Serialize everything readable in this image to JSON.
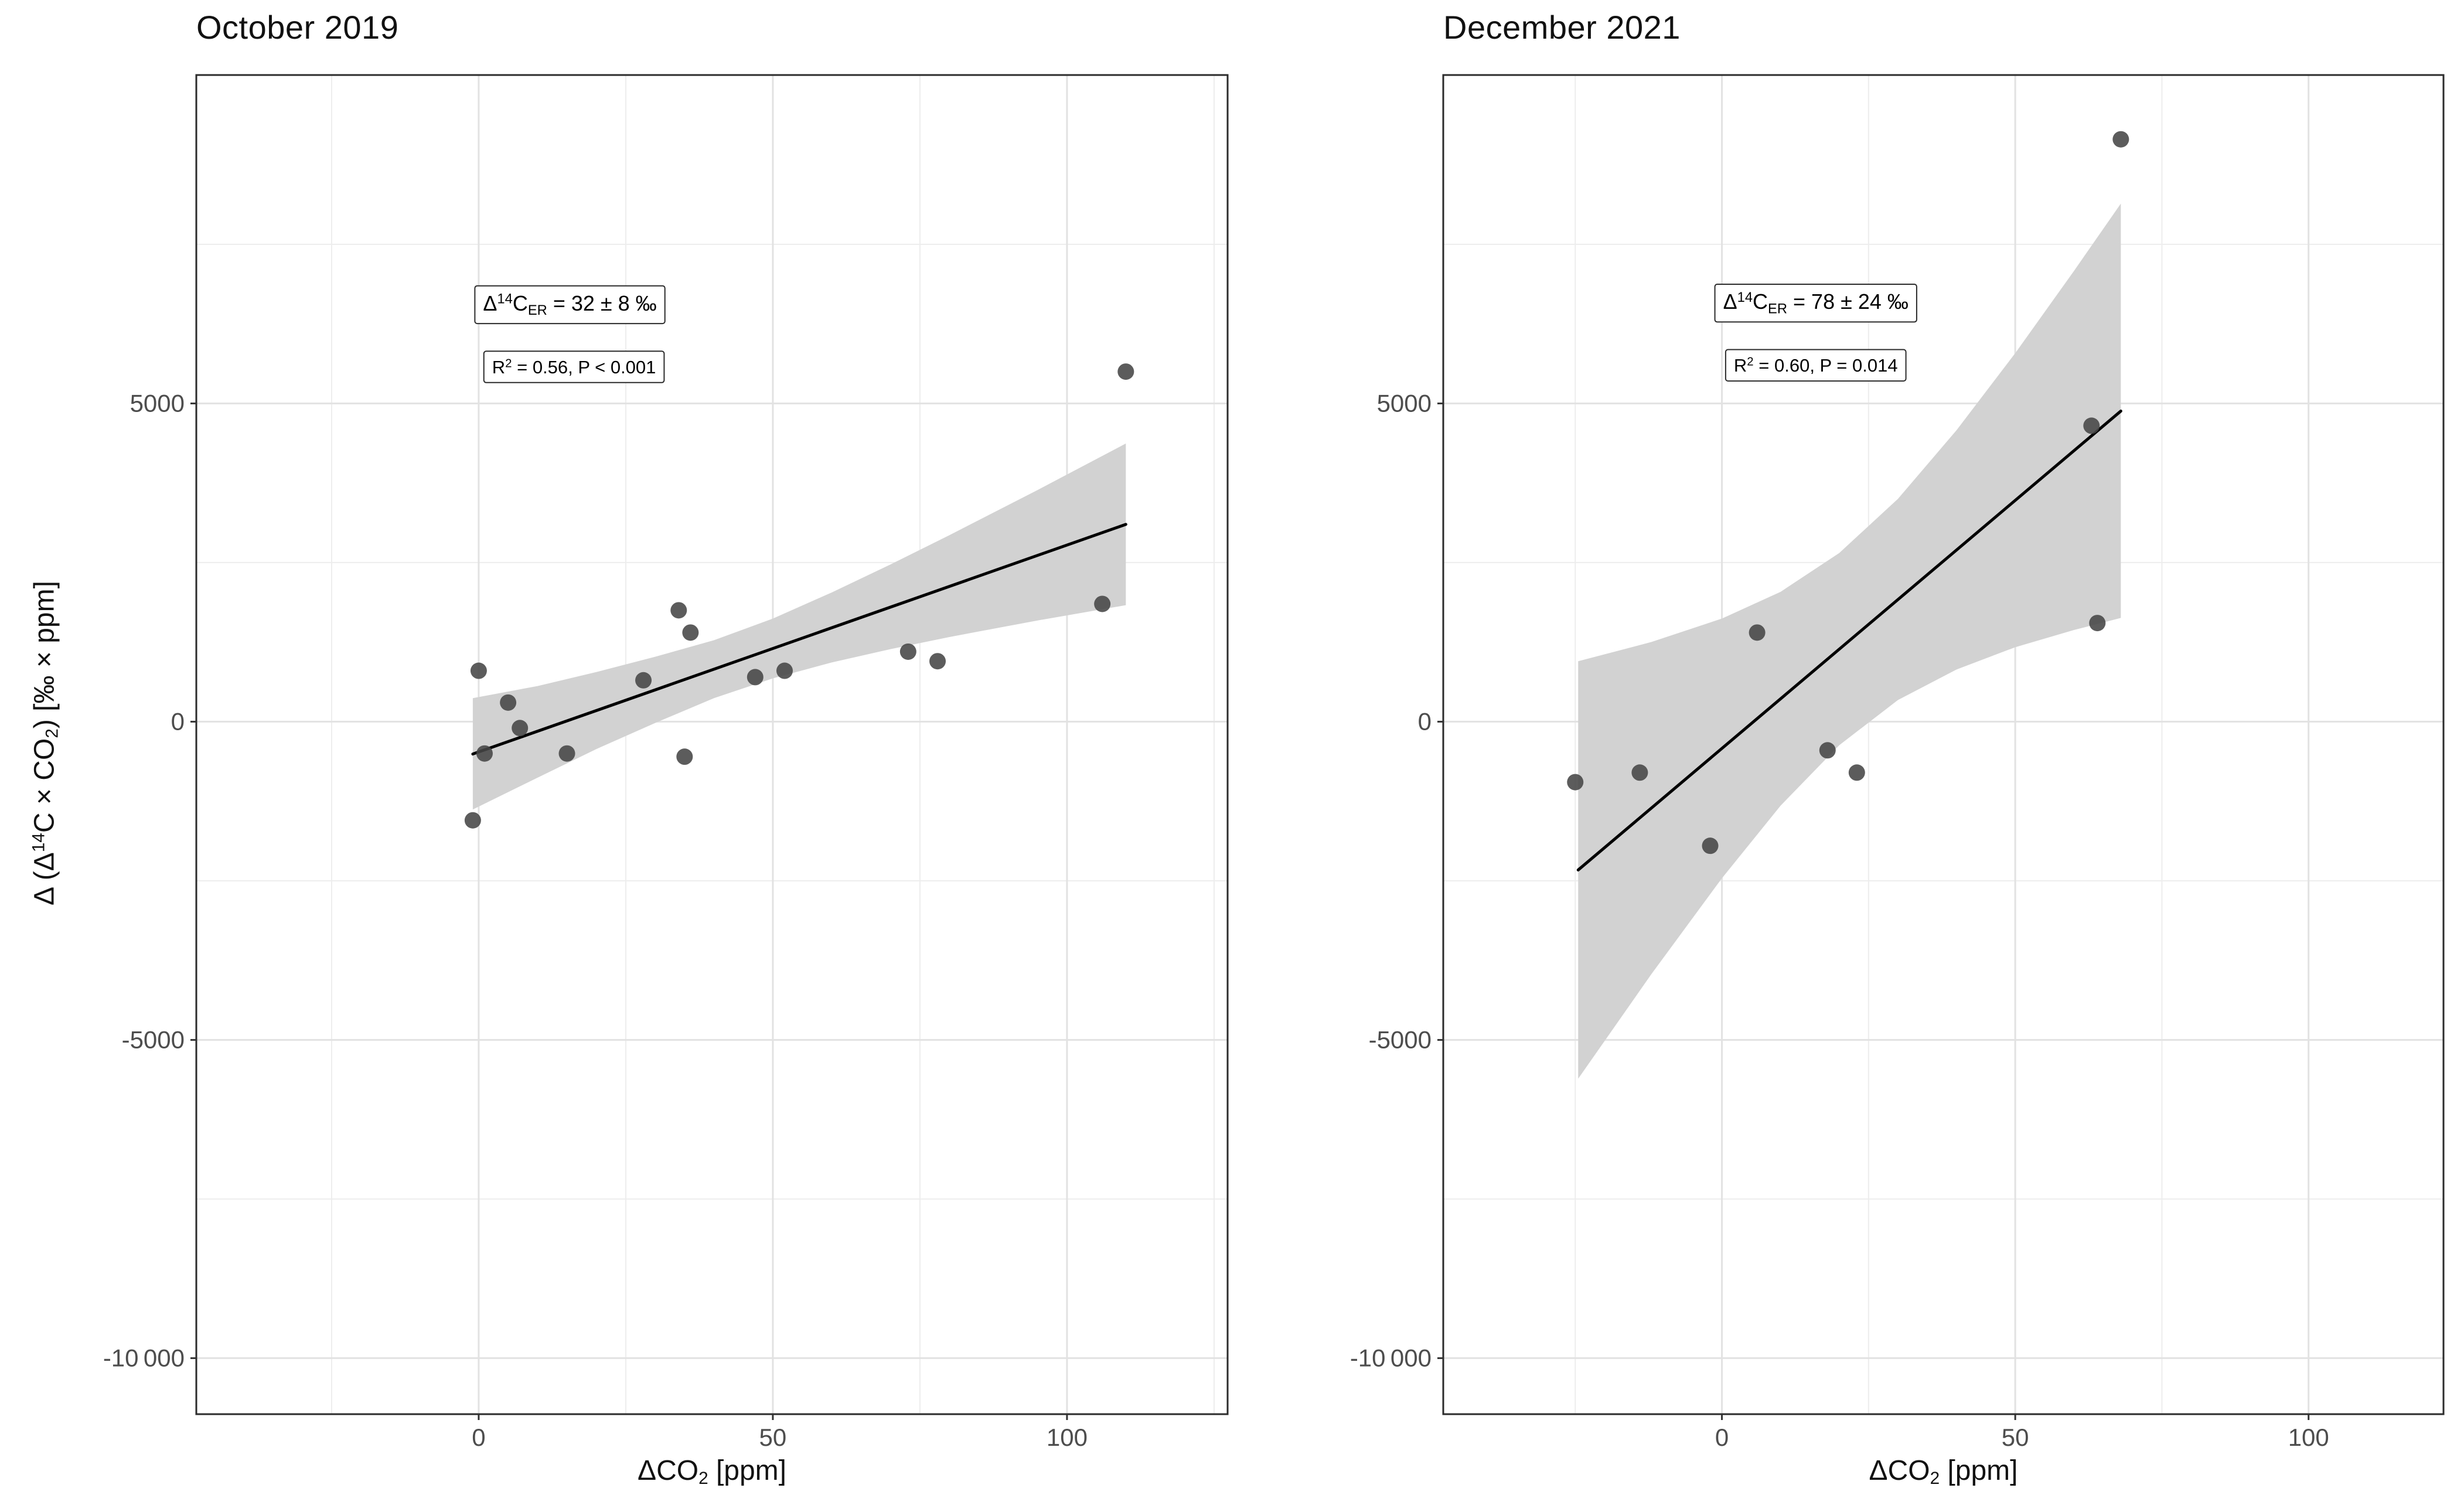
{
  "figure": {
    "background": "#FFFFFF",
    "y_axis_label_segments": [
      {
        "t": "Δ (Δ"
      },
      {
        "t": "14",
        "s": "sup"
      },
      {
        "t": "C × CO"
      },
      {
        "t": "2",
        "s": "sub"
      },
      {
        "t": ") [‰ ×  ppm]"
      }
    ]
  },
  "theme": {
    "panel_border": "#2B2B2B",
    "grid_major": "#E2E2E2",
    "grid_minor": "#EDEDED",
    "band_color": "#D2D2D2",
    "line_color": "#000000",
    "point_color": "#454545",
    "tick_color": "#333333",
    "tick_label_color": "#4D4D4D",
    "annotation_border": "#2B2B2B",
    "annotation_fill": "#FFFFFF"
  },
  "chart_data": [
    {
      "type": "scatter",
      "title": "October 2019",
      "xlabel_segments": [
        {
          "t": "ΔCO"
        },
        {
          "t": "2",
          "s": "sub"
        },
        {
          "t": " [ppm]"
        }
      ],
      "xlim": [
        -48,
        127.3
      ],
      "ylim": [
        -10880,
        10160
      ],
      "x_ticks": [
        {
          "v": 0,
          "label": "0"
        },
        {
          "v": 50,
          "label": "50"
        },
        {
          "v": 100,
          "label": "100"
        }
      ],
      "x_minor": [
        -25,
        25,
        75,
        125
      ],
      "y_ticks": [
        {
          "v": 5000,
          "label": "5000"
        },
        {
          "v": 0,
          "label": "0"
        },
        {
          "v": -5000,
          "label": "-5000"
        },
        {
          "v": -10000,
          "label": "-10 000"
        }
      ],
      "y_minor": [
        7500,
        2500,
        -2500,
        -7500
      ],
      "points": [
        [
          0,
          800
        ],
        [
          5,
          300
        ],
        [
          7,
          -100
        ],
        [
          1,
          -500
        ],
        [
          -1,
          -1550
        ],
        [
          15,
          -500
        ],
        [
          28,
          650
        ],
        [
          34,
          1750
        ],
        [
          36,
          1400
        ],
        [
          35,
          -550
        ],
        [
          47,
          700
        ],
        [
          52,
          800
        ],
        [
          73,
          1100
        ],
        [
          78,
          950
        ],
        [
          106,
          1850
        ],
        [
          110,
          5500
        ]
      ],
      "regression": {
        "x1": -1,
        "y1": -508,
        "x2": 110,
        "y2": 3100
      },
      "band_upper": [
        [
          -1,
          370
        ],
        [
          10,
          560
        ],
        [
          20,
          780
        ],
        [
          30,
          1020
        ],
        [
          40,
          1280
        ],
        [
          50,
          1620
        ],
        [
          60,
          2030
        ],
        [
          70,
          2470
        ],
        [
          80,
          2930
        ],
        [
          95,
          3640
        ],
        [
          110,
          4370
        ]
      ],
      "band_lower": [
        [
          -1,
          -1380
        ],
        [
          10,
          -880
        ],
        [
          20,
          -430
        ],
        [
          30,
          -20
        ],
        [
          40,
          370
        ],
        [
          50,
          680
        ],
        [
          60,
          930
        ],
        [
          70,
          1140
        ],
        [
          80,
          1330
        ],
        [
          95,
          1590
        ],
        [
          110,
          1830
        ]
      ],
      "stats": {
        "slope_permil": 32,
        "slope_err_permil": 8,
        "r_squared": 0.56,
        "p_value": "< 0.001"
      },
      "annotations": [
        {
          "x": 15.5,
          "y": 6575,
          "segments": [
            {
              "t": "Δ"
            },
            {
              "t": "14",
              "s": "sup"
            },
            {
              "t": "C"
            },
            {
              "t": "ER",
              "s": "sub"
            },
            {
              "t": " = 32 ± 8 ‰"
            }
          ]
        },
        {
          "x": 16.2,
          "y": 5575,
          "segments": [
            {
              "t": "R"
            },
            {
              "t": "2",
              "s": "sup"
            },
            {
              "t": " = 0.56, P < 0.001"
            }
          ]
        }
      ]
    },
    {
      "type": "scatter",
      "title": "December 2021",
      "xlabel_segments": [
        {
          "t": "ΔCO"
        },
        {
          "t": "2",
          "s": "sub"
        },
        {
          "t": " [ppm]"
        }
      ],
      "xlim": [
        -47.5,
        123
      ],
      "ylim": [
        -10880,
        10160
      ],
      "x_ticks": [
        {
          "v": 0,
          "label": "0"
        },
        {
          "v": 50,
          "label": "50"
        },
        {
          "v": 100,
          "label": "100"
        }
      ],
      "x_minor": [
        -25,
        25,
        75
      ],
      "y_ticks": [
        {
          "v": 5000,
          "label": "5000"
        },
        {
          "v": 0,
          "label": "0"
        },
        {
          "v": -5000,
          "label": "-5000"
        },
        {
          "v": -10000,
          "label": "-10 000"
        }
      ],
      "y_minor": [
        7500,
        2500,
        -2500,
        -7500
      ],
      "points": [
        [
          -25,
          -950
        ],
        [
          -14,
          -800
        ],
        [
          -2,
          -1950
        ],
        [
          6,
          1400
        ],
        [
          18,
          -450
        ],
        [
          23,
          -800
        ],
        [
          63,
          4650
        ],
        [
          64,
          1550
        ],
        [
          68,
          9150
        ]
      ],
      "regression": {
        "x1": -24.5,
        "y1": -2330,
        "x2": 68,
        "y2": 4880
      },
      "band_upper": [
        [
          -24.5,
          950
        ],
        [
          -12,
          1252
        ],
        [
          0,
          1620
        ],
        [
          10,
          2040
        ],
        [
          20,
          2650
        ],
        [
          30,
          3500
        ],
        [
          40,
          4580
        ],
        [
          50,
          5790
        ],
        [
          60,
          7080
        ],
        [
          68,
          8140
        ]
      ],
      "band_lower": [
        [
          -24.5,
          -5610
        ],
        [
          -12,
          -3964
        ],
        [
          0,
          -2460
        ],
        [
          10,
          -1320
        ],
        [
          20,
          -370
        ],
        [
          30,
          340
        ],
        [
          40,
          820
        ],
        [
          50,
          1170
        ],
        [
          60,
          1440
        ],
        [
          68,
          1630
        ]
      ],
      "stats": {
        "slope_permil": 78,
        "slope_err_permil": 24,
        "r_squared": 0.6,
        "p_value": "= 0.014"
      },
      "annotations": [
        {
          "x": 16,
          "y": 6600,
          "segments": [
            {
              "t": "Δ"
            },
            {
              "t": "14",
              "s": "sup"
            },
            {
              "t": "C"
            },
            {
              "t": "ER",
              "s": "sub"
            },
            {
              "t": " = 78 ± 24 ‰"
            }
          ]
        },
        {
          "x": 16,
          "y": 5600,
          "segments": [
            {
              "t": "R"
            },
            {
              "t": "2",
              "s": "sup"
            },
            {
              "t": " = 0.60, P = 0.014"
            }
          ]
        }
      ]
    }
  ]
}
